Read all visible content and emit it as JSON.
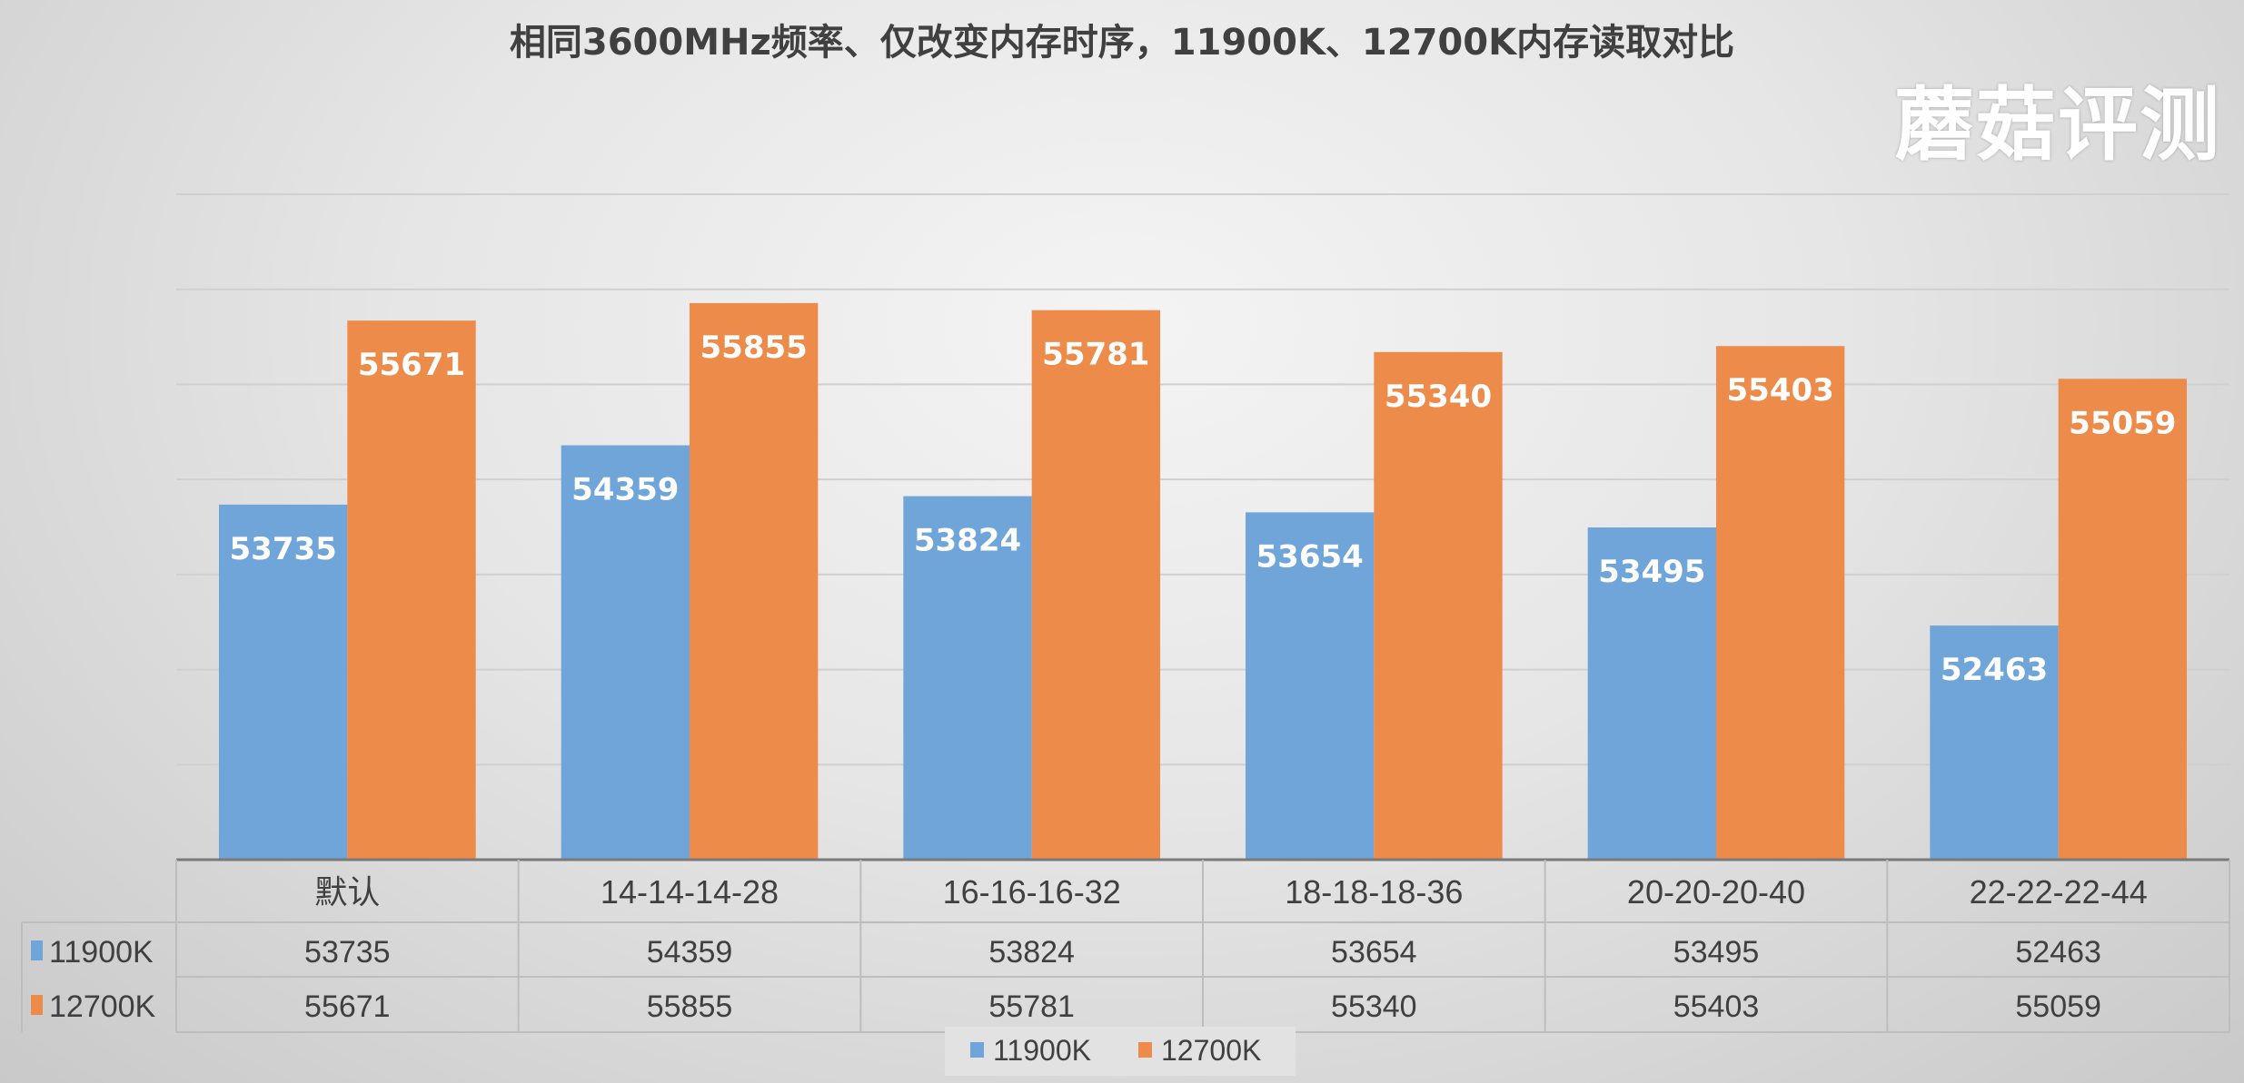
{
  "chart_data": {
    "type": "bar",
    "title": "相同3600MHz频率、仅改变内存时序，11900K、12700K内存读取对比",
    "categories": [
      "默认",
      "14-14-14-28",
      "16-16-16-32",
      "18-18-18-36",
      "20-20-20-40",
      "22-22-22-44"
    ],
    "series": [
      {
        "name": "11900K",
        "color": "#6fa5d8",
        "values": [
          53735,
          54359,
          53824,
          53654,
          53495,
          52463
        ]
      },
      {
        "name": "12700K",
        "color": "#ec8b4a",
        "values": [
          55671,
          55855,
          55781,
          55340,
          55403,
          55059
        ]
      }
    ],
    "ylim": [
      50000,
      57000
    ],
    "grid": true,
    "y_tick_labels_shown": false,
    "data_table": true,
    "legend": "bottom"
  },
  "watermark": "蘑菇评测"
}
